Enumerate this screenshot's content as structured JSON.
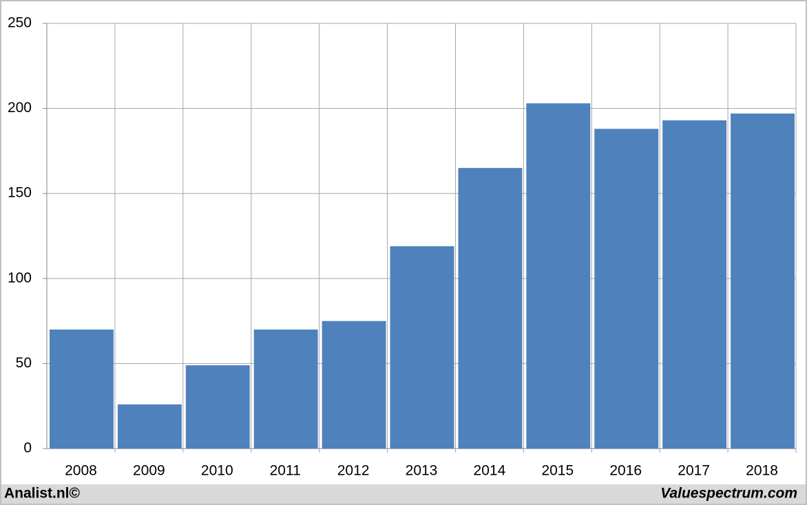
{
  "chart_data": {
    "type": "bar",
    "categories": [
      "2008",
      "2009",
      "2010",
      "2011",
      "2012",
      "2013",
      "2014",
      "2015",
      "2016",
      "2017",
      "2018"
    ],
    "values": [
      70,
      26,
      49,
      70,
      75,
      119,
      165,
      203,
      188,
      193,
      197
    ],
    "color": "#4f81bd",
    "ylim": [
      0,
      250
    ],
    "yticks": [
      0,
      50,
      100,
      150,
      200,
      250
    ],
    "grid": true
  },
  "footer": {
    "left": "Analist.nl©",
    "right": "Valuespectrum.com"
  }
}
